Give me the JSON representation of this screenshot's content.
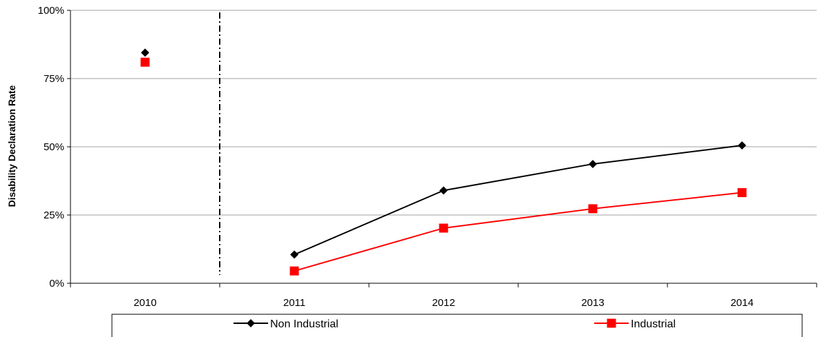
{
  "chart_data": {
    "type": "line",
    "title": "",
    "xlabel": "",
    "ylabel": "Disability Declaration Rate",
    "categories": [
      "2010",
      "2011",
      "2012",
      "2013",
      "2014"
    ],
    "y_ticks": [
      "0%",
      "25%",
      "50%",
      "75%",
      "100%"
    ],
    "ylim": [
      0,
      100
    ],
    "grid": true,
    "legend_position": "bottom",
    "separator_after_category": "2010",
    "series": [
      {
        "name": "Non Industrial",
        "color": "#000000",
        "marker": "diamond",
        "values": [
          84.5,
          10.5,
          34,
          43.7,
          50.5
        ],
        "connected_from_index": 1
      },
      {
        "name": "Industrial",
        "color": "#ff0000",
        "marker": "square",
        "values": [
          81,
          4.5,
          20.2,
          27.3,
          33.2
        ],
        "connected_from_index": 1
      }
    ]
  }
}
